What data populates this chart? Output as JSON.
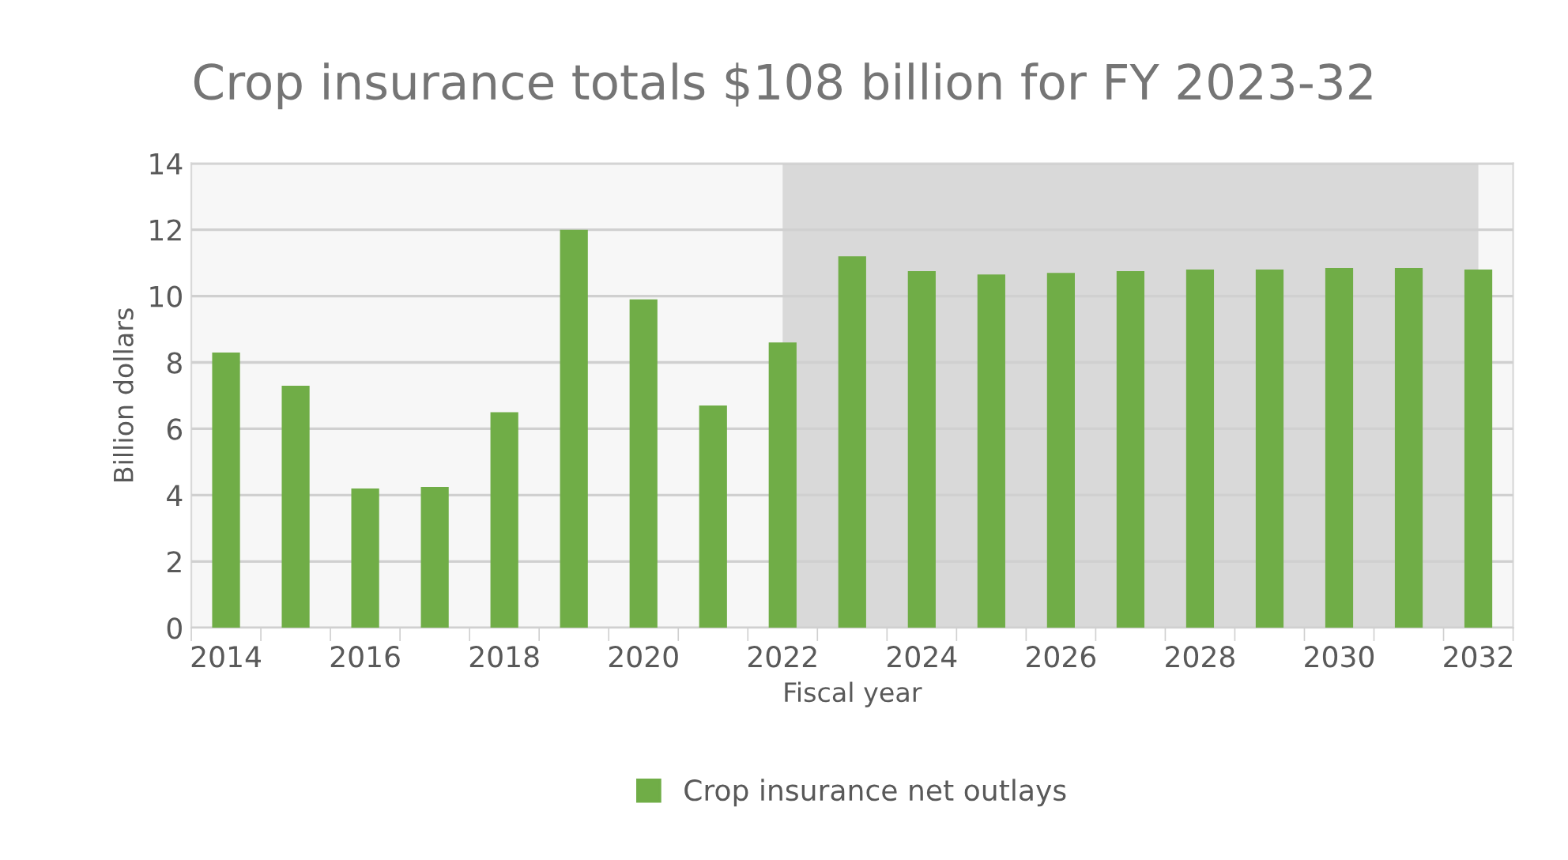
{
  "chart_data": {
    "type": "bar",
    "title": "Crop insurance totals $108 billion for FY 2023-32",
    "xlabel": "Fiscal year",
    "ylabel": "Billion dollars",
    "categories": [
      "2014",
      null,
      "2016",
      null,
      "2018",
      null,
      "2020",
      null,
      "2022",
      null,
      "2024",
      null,
      "2026",
      null,
      "2028",
      null,
      "2030",
      null,
      "2032"
    ],
    "series": [
      {
        "name": "Crop insurance net outlays",
        "color": "#70ad47",
        "values": [
          8.3,
          7.3,
          4.2,
          4.25,
          6.5,
          12.0,
          9.9,
          6.7,
          8.6,
          11.2,
          10.75,
          10.65,
          10.7,
          10.75,
          10.8,
          10.8,
          10.85,
          10.85,
          10.8
        ]
      }
    ],
    "ylim": [
      0,
      14
    ],
    "yticks": [
      0,
      2,
      4,
      6,
      8,
      10,
      12,
      14
    ],
    "grid": "y",
    "legend": "bottom",
    "bands": [
      {
        "axis": "x",
        "from": "2022",
        "to": "2032",
        "color": "#d9d9d9"
      }
    ]
  }
}
